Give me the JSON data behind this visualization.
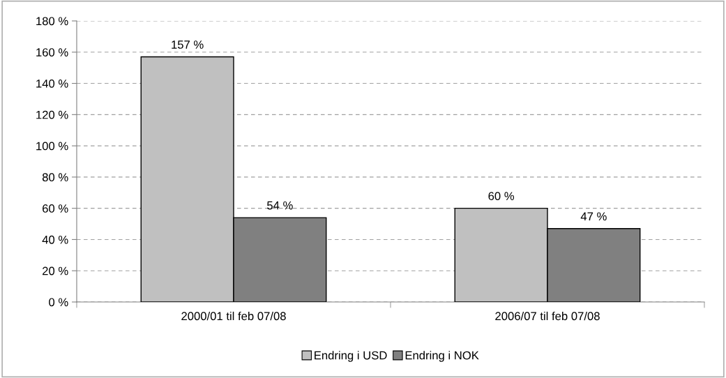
{
  "chart_data": {
    "type": "bar",
    "categories": [
      "2000/01 til feb 07/08",
      "2006/07 til feb 07/08"
    ],
    "series": [
      {
        "name": "Endring i USD",
        "color": "#c0c0c0",
        "values": [
          157,
          60
        ],
        "value_labels": [
          "157 %",
          "60 %"
        ]
      },
      {
        "name": "Endring i NOK",
        "color": "#808080",
        "values": [
          54,
          47
        ],
        "value_labels": [
          "54 %",
          "47 %"
        ]
      }
    ],
    "ylim": [
      0,
      180
    ],
    "yticks": [
      {
        "value": 0,
        "label": "0 %"
      },
      {
        "value": 20,
        "label": "20 %"
      },
      {
        "value": 40,
        "label": "40 %"
      },
      {
        "value": 60,
        "label": "60 %"
      },
      {
        "value": 80,
        "label": "80 %"
      },
      {
        "value": 100,
        "label": "100 %"
      },
      {
        "value": 120,
        "label": "120 %"
      },
      {
        "value": 140,
        "label": "140 %"
      },
      {
        "value": 160,
        "label": "160 %"
      },
      {
        "value": 180,
        "label": "180 %"
      }
    ],
    "grid": "y",
    "legend": "bottom"
  }
}
